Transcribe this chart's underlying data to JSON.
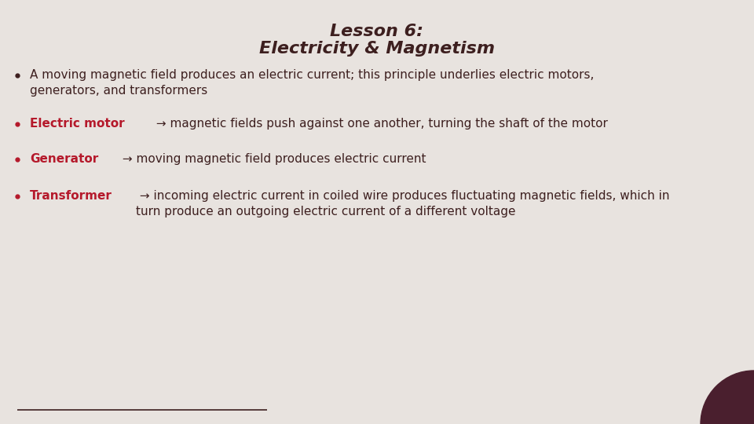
{
  "title_line1": "Lesson 6:",
  "title_line2": "Electricity & Magnetism",
  "title_color": "#3d1f1f",
  "background_color": "#e8e3df",
  "bullet_color": "#3d1f1f",
  "highlight_color": "#b5192b",
  "body_color": "#3d1f1f",
  "bullet1": "A moving magnetic field produces an electric current; this principle underlies electric motors,\ngenerators, and transformers",
  "bullet2_highlight": "Electric motor",
  "bullet2_rest": " → magnetic fields push against one another, turning the shaft of the motor",
  "bullet3_highlight": "Generator",
  "bullet3_rest": " → moving magnetic field produces electric current",
  "bullet4_highlight": "Transformer",
  "bullet4_rest": " → incoming electric current in coiled wire produces fluctuating magnetic fields, which in\nturn produce an outgoing electric current of a different voltage",
  "line_color": "#3d1f1f",
  "circle_color": "#4a1f2e",
  "title_fontsize": 16,
  "body_fontsize": 11
}
